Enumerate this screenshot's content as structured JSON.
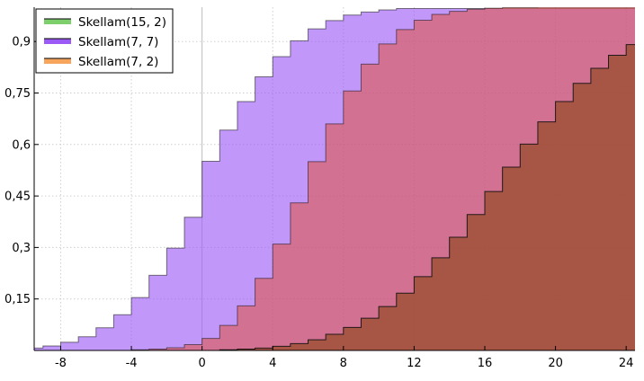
{
  "chart_data": {
    "type": "area",
    "xlim": [
      -9.5,
      24.5
    ],
    "ylim": [
      0.0,
      1.0
    ],
    "xticks": [
      -8,
      -4,
      0,
      4,
      8,
      12,
      16,
      20,
      24
    ],
    "xtick_labels": [
      "-8",
      "-4",
      "0",
      "4",
      "8",
      "12",
      "16",
      "20",
      "24"
    ],
    "yticks": [
      0.15,
      0.3,
      0.45,
      0.6,
      0.75,
      0.9
    ],
    "ytick_labels": [
      "0,15",
      "0,3",
      "0,45",
      "0,6",
      "0,75",
      "0,9"
    ],
    "grid": true,
    "legend_position": "top-left",
    "series": [
      {
        "name": "Skellam(15, 2)",
        "color": "#8b4513",
        "legend_color": "#7ccf6a",
        "step_start": 0,
        "cdf": [
          0.0,
          0.002,
          0.004,
          0.007,
          0.012,
          0.02,
          0.031,
          0.047,
          0.067,
          0.094,
          0.128,
          0.167,
          0.215,
          0.27,
          0.33,
          0.396,
          0.463,
          0.534,
          0.601,
          0.666,
          0.725,
          0.778,
          0.822,
          0.86,
          0.891,
          0.918
        ]
      },
      {
        "name": "Skellam(7, 7)",
        "color": "#9b59f6",
        "legend_color": "#9b59f6",
        "step_start": -10,
        "cdf": [
          0.007,
          0.013,
          0.024,
          0.04,
          0.066,
          0.104,
          0.154,
          0.219,
          0.298,
          0.388,
          0.551,
          0.642,
          0.725,
          0.797,
          0.856,
          0.902,
          0.937,
          0.961,
          0.977,
          0.986,
          0.992,
          0.996
        ]
      },
      {
        "name": "Skellam(7, 2)",
        "color": "#e0564e",
        "legend_color": "#f7a45c",
        "step_start": -5,
        "cdf": [
          0.0,
          0.002,
          0.004,
          0.008,
          0.017,
          0.035,
          0.073,
          0.13,
          0.21,
          0.31,
          0.43,
          0.55,
          0.66,
          0.756,
          0.834,
          0.893,
          0.935,
          0.962,
          0.979,
          0.988,
          0.994,
          0.997,
          0.999,
          0.999,
          1.0,
          1.0,
          1.0,
          1.0,
          1.0,
          1.0
        ]
      }
    ]
  }
}
